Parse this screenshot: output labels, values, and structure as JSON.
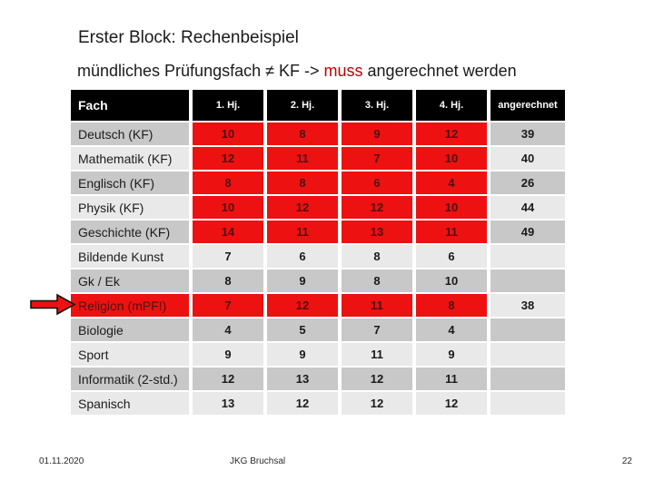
{
  "slide": {
    "title": "Erster Block: Rechenbeispiel",
    "subtitle": {
      "prefix": "mündliches Prüfungsfach ≠ KF -> ",
      "highlight": "muss",
      "suffix": " angerechnet werden"
    },
    "footer": {
      "date": "01.11.2020",
      "center": "JKG Bruchsal",
      "page_number": "22"
    }
  },
  "colors": {
    "cell_red": "#ee1111",
    "red_text": "#4d1111",
    "muss_red": "#c00000",
    "row_dark": "#c8c8c8",
    "row_light": "#e9e9e9",
    "header_bg": "#000000",
    "arrow_red": "#ee1111"
  },
  "table": {
    "headers": [
      "Fach",
      "1. Hj.",
      "2. Hj.",
      "3. Hj.",
      "4. Hj.",
      "angerechnet"
    ],
    "rows": [
      {
        "fach": "Deutsch (KF)",
        "values": [
          "10",
          "8",
          "9",
          "12"
        ],
        "angerechnet": "39",
        "red_values": true,
        "red_fach": false,
        "shade": "dark"
      },
      {
        "fach": "Mathematik (KF)",
        "values": [
          "12",
          "11",
          "7",
          "10"
        ],
        "angerechnet": "40",
        "red_values": true,
        "red_fach": false,
        "shade": "light"
      },
      {
        "fach": "Englisch (KF)",
        "values": [
          "8",
          "8",
          "6",
          "4"
        ],
        "angerechnet": "26",
        "red_values": true,
        "red_fach": false,
        "shade": "dark"
      },
      {
        "fach": "Physik (KF)",
        "values": [
          "10",
          "12",
          "12",
          "10"
        ],
        "angerechnet": "44",
        "red_values": true,
        "red_fach": false,
        "shade": "light"
      },
      {
        "fach": "Geschichte (KF)",
        "values": [
          "14",
          "11",
          "13",
          "11"
        ],
        "angerechnet": "49",
        "red_values": true,
        "red_fach": false,
        "shade": "dark"
      },
      {
        "fach": "Bildende Kunst",
        "values": [
          "7",
          "6",
          "8",
          "6"
        ],
        "angerechnet": "",
        "red_values": false,
        "red_fach": false,
        "shade": "light"
      },
      {
        "fach": "Gk / Ek",
        "values": [
          "8",
          "9",
          "8",
          "10"
        ],
        "angerechnet": "",
        "red_values": false,
        "red_fach": false,
        "shade": "dark"
      },
      {
        "fach": "Religion (mPF!)",
        "values": [
          "7",
          "12",
          "11",
          "8"
        ],
        "angerechnet": "38",
        "red_values": true,
        "red_fach": true,
        "shade": "light"
      },
      {
        "fach": "Biologie",
        "values": [
          "4",
          "5",
          "7",
          "4"
        ],
        "angerechnet": "",
        "red_values": false,
        "red_fach": false,
        "shade": "dark"
      },
      {
        "fach": "Sport",
        "values": [
          "9",
          "9",
          "11",
          "9"
        ],
        "angerechnet": "",
        "red_values": false,
        "red_fach": false,
        "shade": "light"
      },
      {
        "fach": "Informatik (2-std.)",
        "values": [
          "12",
          "13",
          "12",
          "11"
        ],
        "angerechnet": "",
        "red_values": false,
        "red_fach": false,
        "shade": "dark"
      },
      {
        "fach": "Spanisch",
        "values": [
          "13",
          "12",
          "12",
          "12"
        ],
        "angerechnet": "",
        "red_values": false,
        "red_fach": false,
        "shade": "light"
      }
    ]
  }
}
